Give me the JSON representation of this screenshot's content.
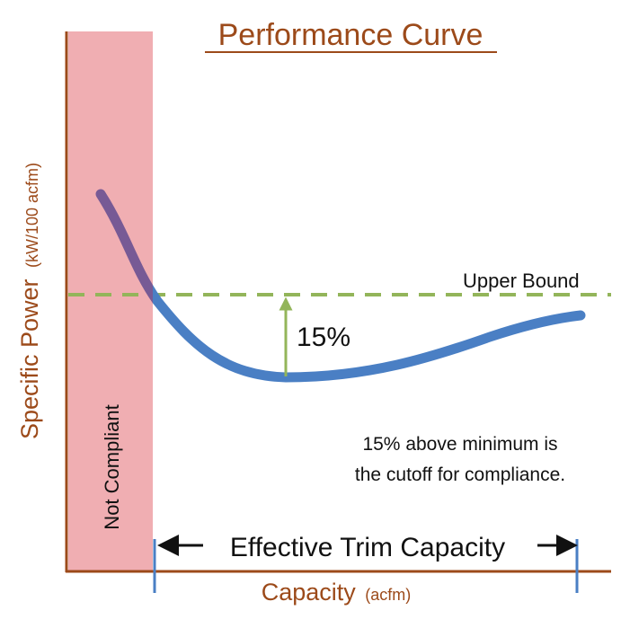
{
  "title": "Performance Curve",
  "y_axis": {
    "main": "Specific Power",
    "unit": "(kW/100 acfm)"
  },
  "x_axis": {
    "main": "Capacity",
    "unit": "(acfm)"
  },
  "labels": {
    "upper_bound": "Upper Bound",
    "percent": "15%",
    "not_compliant": "Not Compliant",
    "effective_trim": "Effective Trim Capacity",
    "note_line1": "15% above minimum is",
    "note_line2": "the cutoff for compliance."
  },
  "colors": {
    "title": "#9c4a1a",
    "axis": "#9c4a1a",
    "not_compliant_region": "#f0aeb2",
    "curve": "#4a7fc4",
    "curve_in_region": "#775a95",
    "upper_bound_line": "#93b55a",
    "percent_arrow": "#93b55a",
    "range_ticks": "#4a7fc4",
    "text": "#111111"
  },
  "icons": {
    "range_arrow_left": "arrow-left-icon",
    "range_arrow_right": "arrow-right-icon",
    "percent_arrow": "arrow-up-icon"
  }
}
